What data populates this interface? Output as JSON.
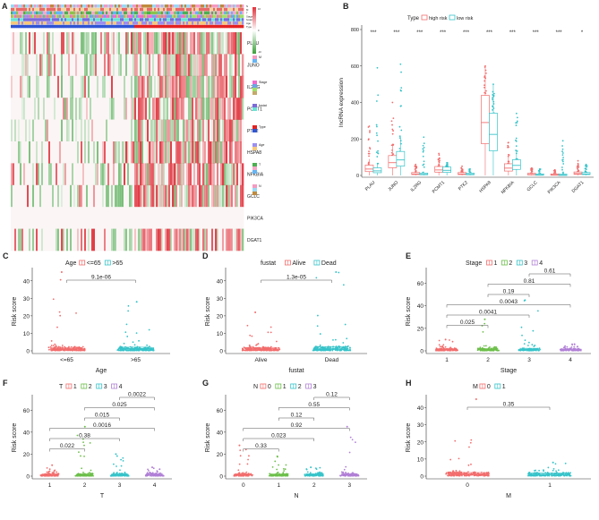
{
  "colors": {
    "high": "#f26d6d",
    "low": "#36c3c9",
    "group1": "#f26d6d",
    "group2": "#6cbf4a",
    "group3": "#36c3c9",
    "group4": "#b07fd6",
    "heat_high": "#e0323c",
    "heat_low": "#3aa03a"
  },
  "panel_letters": [
    "A",
    "B",
    "C",
    "D",
    "E",
    "F",
    "G",
    "H"
  ],
  "panel_A": {
    "genes": [
      "PLAU",
      "JUNO",
      "IL2RG",
      "PCMT1",
      "PTK2",
      "HSPA8",
      "NFKBIA",
      "GCLC",
      "PIK3CA",
      "DGAT1"
    ],
    "annotation_rows": [
      "N",
      "M",
      "T",
      "Stage",
      "fustat",
      "Age",
      "Type"
    ],
    "legend_labels": [
      "M",
      "Stage",
      "fustat",
      "Type",
      "Age",
      "T",
      "N"
    ]
  },
  "chart_data": [
    {
      "type": "box",
      "panel": "B",
      "legend_title": "Type",
      "series": [
        {
          "name": "high risk"
        },
        {
          "name": "low risk"
        }
      ],
      "ylabel": "lncRNA expression",
      "ylim": [
        0,
        800
      ],
      "yticks": [
        0,
        200,
        400,
        600,
        800
      ],
      "categories": [
        "PLAU",
        "JUNO",
        "IL2RG",
        "PCMT1",
        "PTK2",
        "HSPA8",
        "NFKBIA",
        "GCLC",
        "PIK3CA",
        "DGAT1"
      ],
      "significance": [
        "***",
        "***",
        "***",
        "***",
        "***",
        "***",
        "***",
        "***",
        "***",
        "*"
      ],
      "high_median": [
        35,
        70,
        8,
        30,
        8,
        290,
        40,
        5,
        3,
        10
      ],
      "low_median": [
        25,
        85,
        6,
        28,
        6,
        225,
        55,
        3,
        2,
        8
      ],
      "high_max": [
        270,
        400,
        60,
        120,
        50,
        600,
        180,
        40,
        30,
        80
      ],
      "low_max": [
        590,
        610,
        210,
        70,
        35,
        500,
        340,
        35,
        190,
        60
      ]
    },
    {
      "type": "box",
      "panel": "C",
      "legend_title": "Age",
      "series": [
        {
          "name": "<=65"
        },
        {
          "name": ">65"
        }
      ],
      "categories": [
        "<=65",
        ">65"
      ],
      "xlabel": "Age",
      "ylabel": "Risk score",
      "ylim": [
        0,
        45
      ],
      "yticks": [
        0,
        10,
        20,
        30,
        40
      ],
      "medians": [
        1.2,
        1.3
      ],
      "maxima": [
        45,
        28
      ],
      "pvalues": [
        "9.1e-06"
      ]
    },
    {
      "type": "box",
      "panel": "D",
      "legend_title": "fustat",
      "series": [
        {
          "name": "Alive"
        },
        {
          "name": "Dead"
        }
      ],
      "categories": [
        "Alive",
        "Dead"
      ],
      "xlabel": "fustat",
      "ylabel": "Risk score",
      "ylim": [
        0,
        45
      ],
      "yticks": [
        0,
        10,
        20,
        30,
        40
      ],
      "medians": [
        1.2,
        1.4
      ],
      "maxima": [
        22,
        45
      ],
      "pvalues": [
        "1.3e-05"
      ]
    },
    {
      "type": "box",
      "panel": "E",
      "legend_title": "Stage",
      "series": [
        {
          "name": "1"
        },
        {
          "name": "2"
        },
        {
          "name": "3"
        },
        {
          "name": "4"
        }
      ],
      "categories": [
        "1",
        "2",
        "3",
        "4"
      ],
      "xlabel": "Stage",
      "ylabel": "Risk score",
      "ylim": [
        0,
        70
      ],
      "yticks": [
        0,
        20,
        40,
        60
      ],
      "medians": [
        1.2,
        1.3,
        1.4,
        1.1
      ],
      "maxima": [
        10,
        28,
        45,
        6
      ],
      "pvalues": [
        "0.61",
        "0.81",
        "0.19",
        "0.0043",
        "0.0041",
        "0.025"
      ]
    },
    {
      "type": "box",
      "panel": "F",
      "legend_title": "T",
      "series": [
        {
          "name": "1"
        },
        {
          "name": "2"
        },
        {
          "name": "3"
        },
        {
          "name": "4"
        }
      ],
      "categories": [
        "1",
        "2",
        "3",
        "4"
      ],
      "xlabel": "T",
      "ylabel": "Risk score",
      "ylim": [
        0,
        70
      ],
      "yticks": [
        0,
        20,
        40,
        60
      ],
      "medians": [
        1.2,
        1.3,
        1.3,
        1.5
      ],
      "maxima": [
        10,
        45,
        20,
        8
      ],
      "pvalues": [
        "0.0022",
        "0.025",
        "0.015",
        "0.0016",
        "0.38",
        "0.022"
      ]
    },
    {
      "type": "box",
      "panel": "G",
      "legend_title": "N",
      "series": [
        {
          "name": "0"
        },
        {
          "name": "1"
        },
        {
          "name": "2"
        },
        {
          "name": "3"
        }
      ],
      "categories": [
        "0",
        "1",
        "2",
        "3"
      ],
      "xlabel": "N",
      "ylabel": "Risk score",
      "ylim": [
        0,
        70
      ],
      "yticks": [
        0,
        20,
        40,
        60
      ],
      "medians": [
        1.3,
        1.2,
        1.3,
        1.4
      ],
      "maxima": [
        28,
        18,
        8,
        45
      ],
      "pvalues": [
        "0.12",
        "0.55",
        "0.12",
        "0.92",
        "0.023",
        "0.33"
      ]
    },
    {
      "type": "box",
      "panel": "H",
      "legend_title": "M",
      "series": [
        {
          "name": "0"
        },
        {
          "name": "1"
        }
      ],
      "categories": [
        "0",
        "1"
      ],
      "xlabel": "M",
      "ylabel": "Risk score",
      "ylim": [
        0,
        45
      ],
      "yticks": [
        0,
        10,
        20,
        30,
        40
      ],
      "medians": [
        1.3,
        1.1
      ],
      "maxima": [
        45,
        8
      ],
      "pvalues": [
        "0.35"
      ]
    }
  ]
}
